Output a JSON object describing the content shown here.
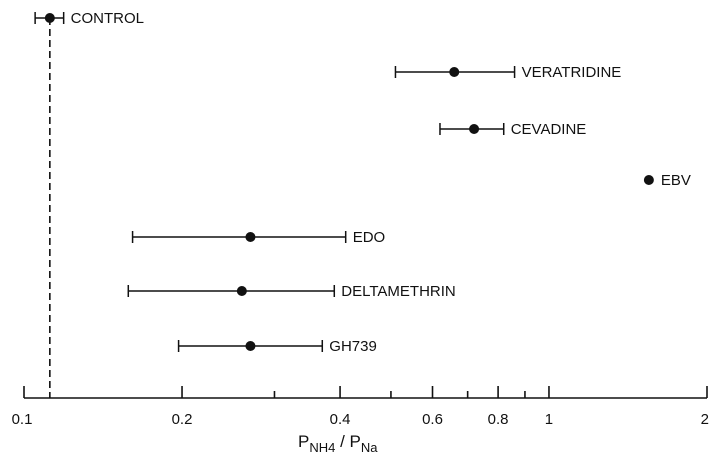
{
  "chart_data": {
    "type": "scatter",
    "x_scale": "log",
    "xlim": [
      0.1,
      2
    ],
    "x_ticks": [
      {
        "value": 0.1,
        "label": "0.1"
      },
      {
        "value": 0.2,
        "label": "0.2"
      },
      {
        "value": 0.4,
        "label": "0.4"
      },
      {
        "value": 0.6,
        "label": "0.6"
      },
      {
        "value": 0.8,
        "label": "0.8"
      },
      {
        "value": 1,
        "label": "1"
      },
      {
        "value": 2,
        "label": "2"
      }
    ],
    "minor_ticks": [
      0.3,
      0.5,
      0.7,
      0.9
    ],
    "xlabel": {
      "P1": "P",
      "sub1": "NH",
      "sub1b": "4",
      "slash": " / ",
      "P2": "P",
      "sub2": "Na"
    },
    "reference_x": 0.112,
    "points": [
      {
        "label": "CONTROL",
        "x": 0.112,
        "low": 0.105,
        "high": 0.119
      },
      {
        "label": "VERATRIDINE",
        "x": 0.66,
        "low": 0.51,
        "high": 0.86
      },
      {
        "label": "CEVADINE",
        "x": 0.72,
        "low": 0.62,
        "high": 0.82
      },
      {
        "label": "EBV",
        "x": 1.55,
        "low": null,
        "high": null
      },
      {
        "label": "EDO",
        "x": 0.27,
        "low": 0.161,
        "high": 0.41
      },
      {
        "label": "DELTAMETHRIN",
        "x": 0.26,
        "low": 0.158,
        "high": 0.39
      },
      {
        "label": "GH739",
        "x": 0.27,
        "low": 0.197,
        "high": 0.37
      }
    ]
  }
}
